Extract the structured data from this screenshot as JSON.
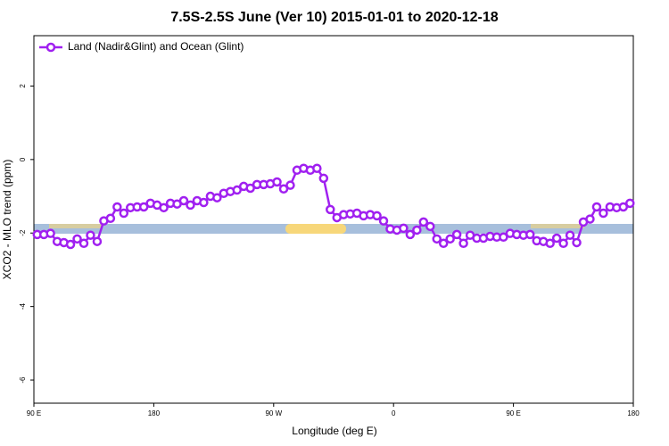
{
  "chart_data": {
    "type": "line",
    "title": "7.5S-2.5S June (Ver 10)   2015-01-01 to 2020-12-18",
    "x_label": "Longitude (deg E)",
    "y_label": "XCO2 - MLO trend (ppm)",
    "xlim": [
      90,
      540
    ],
    "ylim": [
      -6.63,
      3.37
    ],
    "xticks": [
      {
        "value": 90,
        "label": "90 E"
      },
      180,
      {
        "value": 270,
        "label": "90 W"
      },
      {
        "value": 360,
        "label": "0"
      },
      {
        "value": 450,
        "label": "90 E"
      },
      {
        "value": 540,
        "label": "180"
      }
    ],
    "yticks": [
      2,
      0,
      -2,
      -4,
      -6
    ],
    "legend": "top-left",
    "x": [
      92.5,
      97.5,
      102.5,
      107.5,
      112.5,
      117.5,
      122.5,
      127.5,
      132.5,
      137.5,
      142.5,
      147.5,
      152.5,
      157.5,
      162.5,
      167.5,
      172.5,
      177.5,
      182.5,
      187.5,
      192.5,
      197.5,
      202.5,
      207.5,
      212.5,
      217.5,
      222.5,
      227.5,
      232.5,
      237.5,
      242.5,
      247.5,
      252.5,
      257.5,
      262.5,
      267.5,
      272.5,
      277.5,
      282.5,
      287.5,
      292.5,
      297.5,
      302.5,
      307.5,
      312.5,
      317.5,
      322.5,
      327.5,
      332.5,
      337.5,
      342.5,
      347.5,
      352.5,
      357.5,
      362.5,
      367.5,
      372.5,
      377.5,
      382.5,
      387.5,
      392.5,
      397.5,
      402.5,
      407.5,
      412.5,
      417.5,
      422.5,
      427.5,
      432.5,
      437.5,
      442.5,
      447.5,
      452.5,
      457.5,
      462.5,
      467.5,
      472.5,
      477.5,
      482.5,
      487.5,
      492.5,
      497.5,
      502.5,
      507.5,
      512.5,
      517.5,
      522.5,
      527.5,
      532.5,
      537.5
    ],
    "series": [
      {
        "name": "Land (Nadir&Glint) and Ocean (Glint)",
        "color": "#a020f0",
        "values": [
          -2.04,
          -2.04,
          -2.01,
          -2.23,
          -2.26,
          -2.31,
          -2.16,
          -2.28,
          -2.06,
          -2.23,
          -1.67,
          -1.6,
          -1.29,
          -1.46,
          -1.31,
          -1.29,
          -1.29,
          -1.19,
          -1.24,
          -1.31,
          -1.19,
          -1.21,
          -1.12,
          -1.24,
          -1.12,
          -1.17,
          -1.0,
          -1.04,
          -0.92,
          -0.87,
          -0.83,
          -0.73,
          -0.78,
          -0.68,
          -0.68,
          -0.66,
          -0.61,
          -0.8,
          -0.7,
          -0.29,
          -0.24,
          -0.29,
          -0.24,
          -0.51,
          -1.36,
          -1.58,
          -1.5,
          -1.48,
          -1.46,
          -1.53,
          -1.5,
          -1.53,
          -1.67,
          -1.89,
          -1.92,
          -1.87,
          -2.04,
          -1.92,
          -1.7,
          -1.82,
          -2.16,
          -2.28,
          -2.16,
          -2.04,
          -2.28,
          -2.06,
          -2.14,
          -2.14,
          -2.09,
          -2.11,
          -2.11,
          -2.01,
          -2.04,
          -2.06,
          -2.04,
          -2.21,
          -2.23,
          -2.28,
          -2.14,
          -2.28,
          -2.06,
          -2.26,
          -1.7,
          -1.62,
          -1.29,
          -1.46,
          -1.29,
          -1.31,
          -1.29,
          -1.19
        ]
      }
    ]
  }
}
